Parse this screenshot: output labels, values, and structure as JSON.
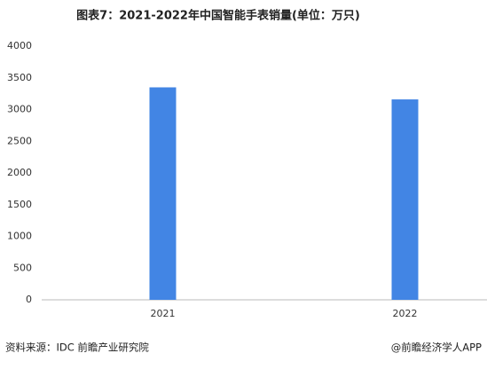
{
  "chart_data": {
    "type": "bar",
    "title": "图表7：2021-2022年中国智能手表销量(单位：万只)",
    "categories": [
      "2021",
      "2022"
    ],
    "values": [
      3350,
      3160
    ],
    "color": "#4285e4",
    "ylim": [
      0,
      4000
    ],
    "yticks": [
      0,
      500,
      1000,
      1500,
      2000,
      2500,
      3000,
      3500,
      4000
    ],
    "grid": false,
    "source": "资料来源：IDC 前瞻产业研究院",
    "credit": "@前瞻经济学人APP"
  }
}
